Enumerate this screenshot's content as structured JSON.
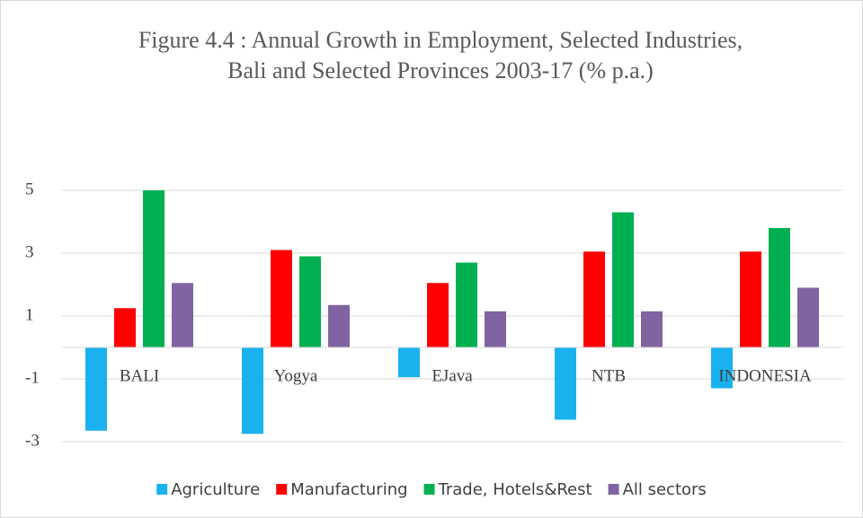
{
  "chart_data": {
    "type": "bar",
    "title": "Figure 4.4 : Annual Growth in Employment, Selected Industries, Bali and Selected Provinces 2003-17 (% p.a.)",
    "categories": [
      "BALI",
      "Yogya",
      "EJava",
      "NTB",
      "INDONESIA"
    ],
    "series": [
      {
        "name": "Agriculture",
        "color": "#19b2ee",
        "values": [
          -2.65,
          -2.75,
          -0.95,
          -2.3,
          -1.3
        ]
      },
      {
        "name": "Manufacturing",
        "color": "#ff0000",
        "values": [
          1.25,
          3.1,
          2.05,
          3.05,
          3.05
        ]
      },
      {
        "name": "Trade, Hotels&Rest",
        "color": "#00b050",
        "values": [
          5,
          2.9,
          2.7,
          4.3,
          3.8
        ]
      },
      {
        "name": "All sectors",
        "color": "#8064a2",
        "values": [
          2.05,
          1.35,
          1.15,
          1.15,
          1.9
        ]
      }
    ],
    "ylim": [
      -3,
      5
    ],
    "yticks": [
      5,
      3,
      1,
      -1,
      -3
    ],
    "grid": true,
    "legend": "bottom"
  }
}
